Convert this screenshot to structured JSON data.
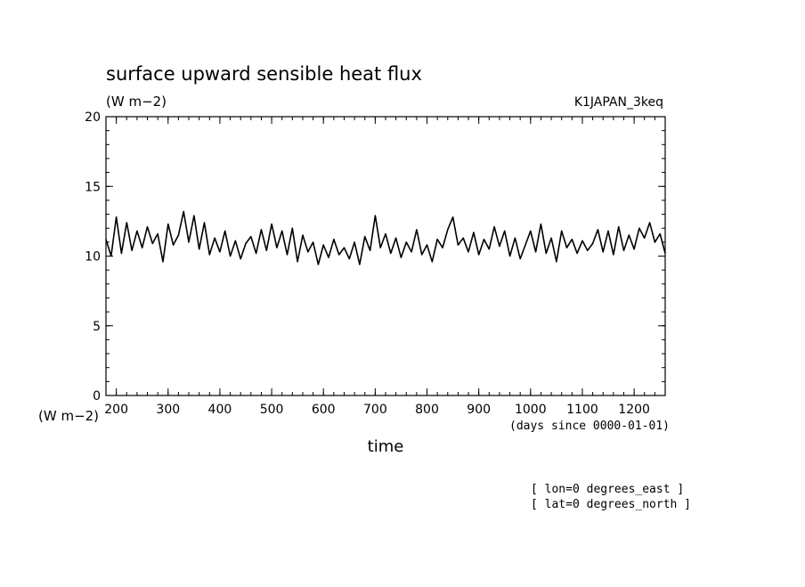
{
  "chart_data": {
    "type": "line",
    "title": "surface upward sensible heat flux",
    "units_label": "(W m−2)",
    "run_label": "K1JAPAN_3keq",
    "xlabel": "time",
    "x_units_label": "(days since 0000-01-01)",
    "ylabel": "(W m−2)",
    "xlim": [
      180,
      1260
    ],
    "ylim": [
      0,
      20
    ],
    "x_ticks": [
      200,
      300,
      400,
      500,
      600,
      700,
      800,
      900,
      1000,
      1100,
      1200
    ],
    "y_ticks": [
      0,
      5,
      10,
      15,
      20
    ],
    "grid": false,
    "legend": "none",
    "annotations": [
      "[ lon=0 degrees_east ]",
      "[ lat=0 degrees_north ]"
    ],
    "series": [
      {
        "x": [
          180,
          190,
          200,
          210,
          220,
          230,
          240,
          250,
          260,
          270,
          280,
          290,
          300,
          310,
          320,
          330,
          340,
          350,
          360,
          370,
          380,
          390,
          400,
          410,
          420,
          430,
          440,
          450,
          460,
          470,
          480,
          490,
          500,
          510,
          520,
          530,
          540,
          550,
          560,
          570,
          580,
          590,
          600,
          610,
          620,
          630,
          640,
          650,
          660,
          670,
          680,
          690,
          700,
          710,
          720,
          730,
          740,
          750,
          760,
          770,
          780,
          790,
          800,
          810,
          820,
          830,
          840,
          850,
          860,
          870,
          880,
          890,
          900,
          910,
          920,
          930,
          940,
          950,
          960,
          970,
          980,
          990,
          1000,
          1010,
          1020,
          1030,
          1040,
          1050,
          1060,
          1070,
          1080,
          1090,
          1100,
          1110,
          1120,
          1130,
          1140,
          1150,
          1160,
          1170,
          1180,
          1190,
          1200,
          1210,
          1220,
          1230,
          1240,
          1250,
          1260
        ],
        "values": [
          11.2,
          10.0,
          12.8,
          10.2,
          12.4,
          10.4,
          11.8,
          10.6,
          12.1,
          10.9,
          11.6,
          9.6,
          12.3,
          10.8,
          11.5,
          13.2,
          11.0,
          12.9,
          10.5,
          12.4,
          10.1,
          11.3,
          10.3,
          11.8,
          10.0,
          11.1,
          9.8,
          10.9,
          11.4,
          10.2,
          11.9,
          10.4,
          12.3,
          10.6,
          11.8,
          10.1,
          12.0,
          9.6,
          11.5,
          10.3,
          11.0,
          9.4,
          10.8,
          9.9,
          11.2,
          10.1,
          10.6,
          9.8,
          11.0,
          9.4,
          11.4,
          10.4,
          12.9,
          10.6,
          11.6,
          10.2,
          11.3,
          9.9,
          11.0,
          10.3,
          11.9,
          10.1,
          10.8,
          9.6,
          11.2,
          10.6,
          11.9,
          12.8,
          10.8,
          11.3,
          10.3,
          11.7,
          10.1,
          11.2,
          10.5,
          12.1,
          10.7,
          11.8,
          10.0,
          11.3,
          9.8,
          10.8,
          11.8,
          10.3,
          12.3,
          10.2,
          11.3,
          9.6,
          11.8,
          10.6,
          11.2,
          10.2,
          11.1,
          10.4,
          10.9,
          11.9,
          10.3,
          11.8,
          10.1,
          12.1,
          10.4,
          11.5,
          10.5,
          12.0,
          11.3,
          12.4,
          11.0,
          11.6,
          10.2
        ]
      }
    ]
  }
}
